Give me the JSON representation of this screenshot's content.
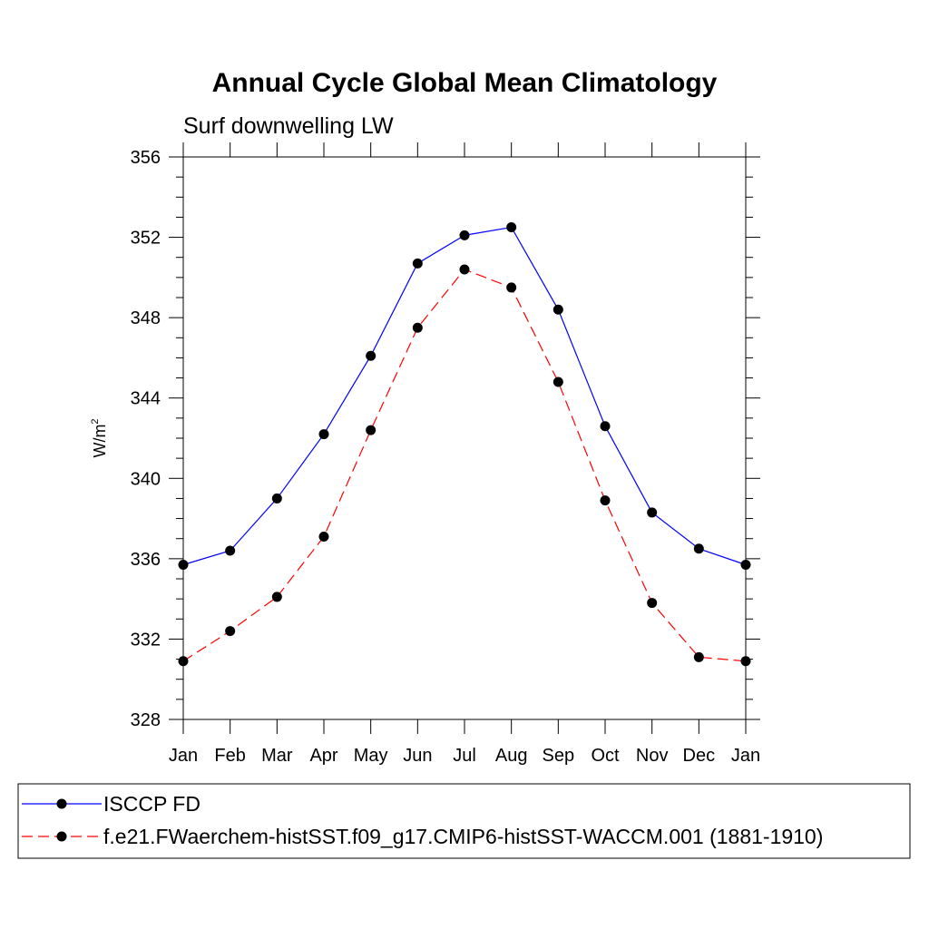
{
  "chart_data": {
    "type": "line",
    "title": "Annual Cycle Global Mean Climatology",
    "subtitle": "Surf downwelling LW",
    "ylabel": "W/m",
    "ylabel_superscript": "2",
    "xlabel": "",
    "categories": [
      "Jan",
      "Feb",
      "Mar",
      "Apr",
      "May",
      "Jun",
      "Jul",
      "Aug",
      "Sep",
      "Oct",
      "Nov",
      "Dec",
      "Jan"
    ],
    "ylim": [
      328,
      356
    ],
    "yticks": [
      328,
      332,
      336,
      340,
      344,
      348,
      352,
      356
    ],
    "yticks_minor_step": 1,
    "grid": false,
    "legend_position": "bottom",
    "series": [
      {
        "name": "ISCCP FD",
        "color": "#0000ff",
        "line_style": "solid",
        "marker": "filled-circle",
        "values": [
          335.7,
          336.4,
          339.0,
          342.2,
          346.1,
          350.7,
          352.1,
          352.5,
          348.4,
          342.6,
          338.3,
          336.5,
          335.7
        ]
      },
      {
        "name": "f.e21.FWaerchem-histSST.f09_g17.CMIP6-histSST-WACCM.001 (1881-1910)",
        "color": "#ff0000",
        "line_style": "dashed",
        "marker": "filled-circle",
        "values": [
          330.9,
          332.4,
          334.1,
          337.1,
          342.4,
          347.5,
          350.4,
          349.5,
          344.8,
          338.9,
          333.8,
          331.1,
          330.9
        ]
      }
    ]
  }
}
